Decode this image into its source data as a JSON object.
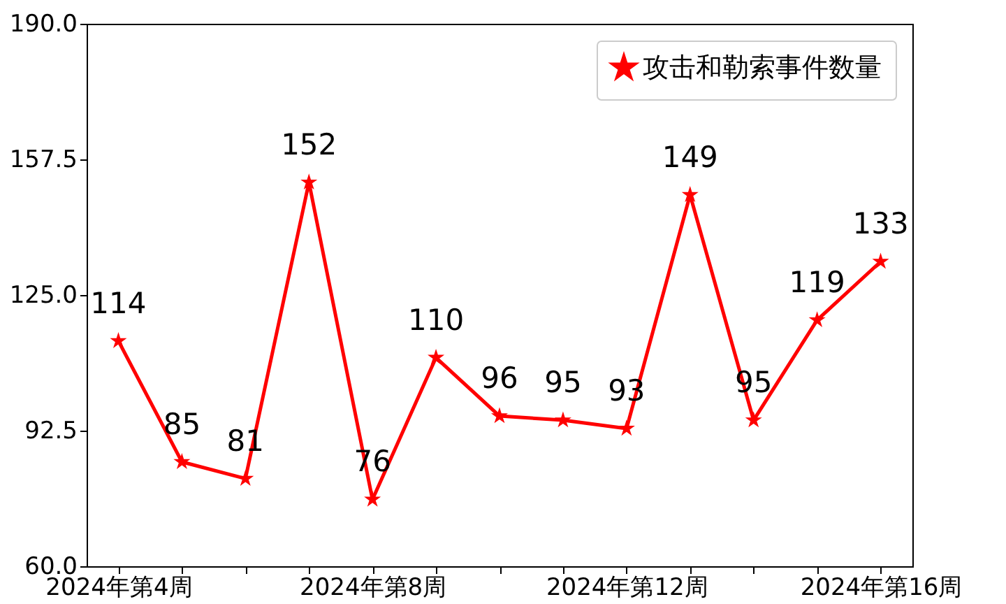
{
  "chart_data": {
    "type": "line",
    "categories": [
      "2024年第4周",
      null,
      null,
      null,
      "2024年第8周",
      null,
      null,
      null,
      "2024年第12周",
      null,
      null,
      null,
      "2024年第16周"
    ],
    "series": [
      {
        "name": "攻击和勒索事件数量",
        "color": "#ff0000",
        "values": [
          114,
          85,
          81,
          152,
          76,
          110,
          96,
          95,
          93,
          149,
          95,
          119,
          133
        ]
      }
    ],
    "ylim": [
      60,
      190
    ],
    "yticks": [
      {
        "value": 60,
        "label": "60.0"
      },
      {
        "value": 92.5,
        "label": "92.5"
      },
      {
        "value": 125,
        "label": "125.0"
      },
      {
        "value": 157.5,
        "label": "157.5"
      },
      {
        "value": 190,
        "label": "190.0"
      }
    ],
    "grid": false,
    "legend": "top right",
    "marker": "star",
    "data_labels": true
  }
}
